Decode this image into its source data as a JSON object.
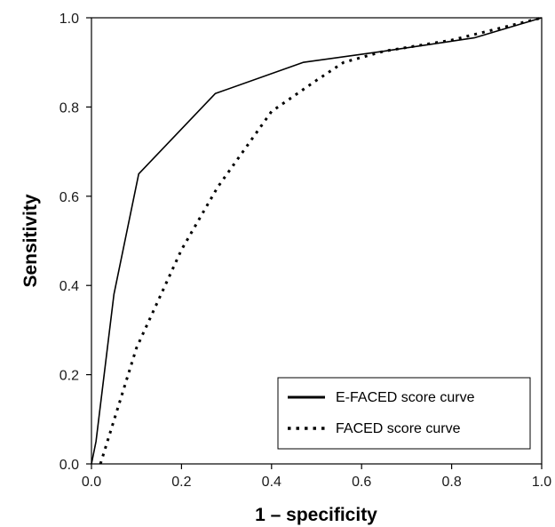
{
  "chart_data": {
    "type": "line",
    "title": "",
    "xlabel": "1 – specificity",
    "ylabel": "Sensitivity",
    "xlim": [
      0.0,
      1.0
    ],
    "ylim": [
      0.0,
      1.0
    ],
    "xticks": [
      "0.0",
      "0.2",
      "0.4",
      "0.6",
      "0.8",
      "1.0"
    ],
    "yticks": [
      "0.0",
      "0.2",
      "0.4",
      "0.6",
      "0.8",
      "1.0"
    ],
    "grid": false,
    "legend_position": "bottom-right",
    "series": [
      {
        "name": "E-FACED score curve",
        "style": "solid",
        "color": "#000000",
        "x": [
          0.0,
          0.01,
          0.05,
          0.105,
          0.275,
          0.47,
          0.65,
          0.85,
          1.0
        ],
        "y": [
          0.0,
          0.05,
          0.38,
          0.65,
          0.83,
          0.9,
          0.925,
          0.955,
          1.0
        ]
      },
      {
        "name": "FACED score curve",
        "style": "dotted",
        "color": "#000000",
        "x": [
          0.02,
          0.1,
          0.2,
          0.28,
          0.4,
          0.5,
          0.56,
          0.65,
          0.8,
          0.88,
          1.0
        ],
        "y": [
          0.0,
          0.26,
          0.48,
          0.62,
          0.79,
          0.86,
          0.9,
          0.925,
          0.95,
          0.97,
          1.0
        ]
      }
    ]
  }
}
